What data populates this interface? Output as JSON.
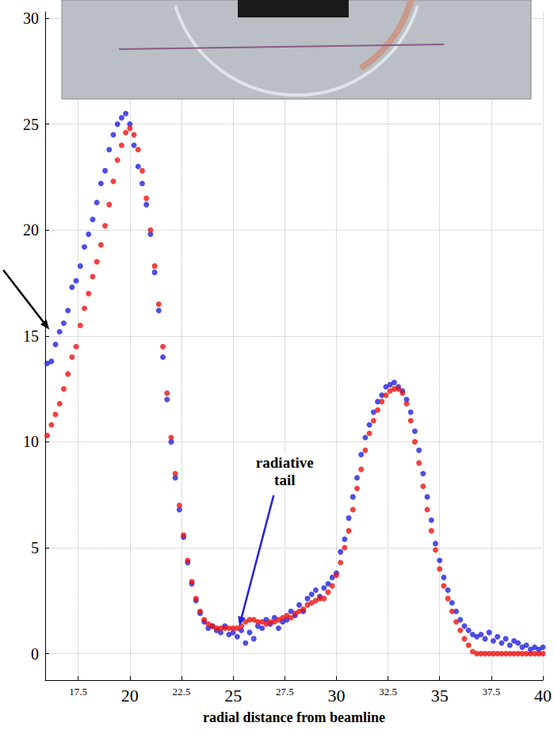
{
  "chart_data": {
    "type": "scatter",
    "xlabel": "radial distance from beamline",
    "xlim": [
      15.9,
      40
    ],
    "xticks": [
      17.5,
      20,
      22.5,
      25,
      27.5,
      30,
      32.5,
      35,
      37.5,
      40
    ],
    "ylim": [
      -1.25,
      30.3
    ],
    "yticks": [
      0,
      5,
      10,
      15,
      20,
      25,
      30
    ],
    "grid": true,
    "marker": "circle",
    "x": [
      16,
      16.2,
      16.4,
      16.6,
      16.8,
      17,
      17.2,
      17.4,
      17.6,
      17.8,
      18,
      18.2,
      18.4,
      18.6,
      18.8,
      19,
      19.2,
      19.4,
      19.6,
      19.8,
      20,
      20.2,
      20.4,
      20.6,
      20.8,
      21,
      21.2,
      21.4,
      21.6,
      21.8,
      22,
      22.2,
      22.4,
      22.6,
      22.8,
      23,
      23.2,
      23.4,
      23.6,
      23.8,
      24,
      24.2,
      24.4,
      24.6,
      24.8,
      25,
      25.2,
      25.4,
      25.6,
      25.8,
      26,
      26.2,
      26.4,
      26.6,
      26.8,
      27,
      27.2,
      27.4,
      27.6,
      27.8,
      28,
      28.2,
      28.4,
      28.6,
      28.8,
      29,
      29.2,
      29.4,
      29.6,
      29.8,
      30,
      30.2,
      30.4,
      30.6,
      30.8,
      31,
      31.2,
      31.4,
      31.6,
      31.8,
      32,
      32.2,
      32.4,
      32.6,
      32.8,
      33,
      33.2,
      33.4,
      33.6,
      33.8,
      34,
      34.2,
      34.4,
      34.6,
      34.8,
      35,
      35.2,
      35.4,
      35.6,
      35.8,
      36,
      36.2,
      36.4,
      36.6,
      36.8,
      37,
      37.2,
      37.4,
      37.6,
      37.8,
      38,
      38.2,
      38.4,
      38.6,
      38.8,
      39,
      39.2,
      39.4,
      39.6,
      39.8,
      40
    ],
    "series": [
      {
        "color": "#2222dd",
        "values": [
          13.7,
          13.8,
          14.6,
          15.2,
          15.6,
          16.2,
          17.3,
          17.6,
          18.3,
          19.2,
          19.8,
          20.5,
          21.3,
          22.2,
          22.8,
          23.8,
          24.5,
          25.0,
          25.3,
          25.5,
          25.0,
          24.0,
          23.0,
          22.2,
          21.2,
          19.8,
          18.0,
          16.2,
          14.0,
          12.0,
          10.0,
          8.3,
          6.8,
          5.5,
          4.3,
          3.3,
          2.5,
          1.9,
          1.5,
          1.2,
          1.3,
          1.1,
          1.0,
          1.3,
          0.9,
          1.0,
          0.8,
          1.1,
          0.5,
          1.0,
          0.7,
          1.3,
          1.2,
          1.6,
          1.4,
          1.7,
          1.2,
          1.5,
          1.6,
          2.0,
          1.8,
          2.3,
          2.0,
          2.6,
          2.8,
          3.0,
          2.7,
          3.1,
          3.3,
          3.6,
          3.8,
          4.8,
          5.4,
          6.4,
          7.4,
          8.3,
          9.4,
          10.2,
          10.8,
          11.4,
          11.9,
          12.2,
          12.6,
          12.7,
          12.8,
          12.6,
          12.4,
          12.0,
          11.4,
          10.5,
          9.6,
          8.5,
          7.4,
          6.3,
          5.2,
          4.4,
          3.6,
          3.0,
          2.4,
          2.0,
          1.6,
          1.3,
          1.1,
          0.9,
          0.8,
          0.9,
          0.7,
          1.0,
          0.6,
          0.8,
          0.5,
          0.7,
          0.4,
          0.6,
          0.5,
          0.3,
          0.4,
          0.2,
          0.3,
          0.2,
          0.3
        ]
      },
      {
        "color": "#ee1111",
        "values": [
          10.3,
          10.8,
          11.3,
          11.8,
          12.5,
          13.2,
          14.0,
          14.5,
          15.5,
          16.3,
          17.0,
          17.8,
          18.5,
          19.3,
          20.2,
          21.2,
          22.3,
          23.3,
          24.0,
          24.6,
          24.8,
          24.5,
          23.8,
          22.8,
          21.5,
          20.0,
          18.3,
          16.5,
          14.5,
          12.3,
          10.2,
          8.5,
          7.0,
          5.6,
          4.4,
          3.4,
          2.6,
          2.0,
          1.6,
          1.4,
          1.3,
          1.2,
          1.2,
          1.2,
          1.2,
          1.2,
          1.2,
          1.3,
          1.5,
          1.6,
          1.6,
          1.5,
          1.5,
          1.4,
          1.5,
          1.5,
          1.6,
          1.7,
          1.8,
          1.7,
          1.9,
          2.0,
          2.1,
          2.3,
          2.4,
          2.5,
          2.6,
          2.6,
          2.9,
          3.2,
          3.7,
          4.3,
          5.0,
          5.8,
          6.8,
          7.8,
          8.7,
          9.6,
          10.4,
          11.0,
          11.5,
          11.9,
          12.2,
          12.4,
          12.5,
          12.5,
          12.3,
          11.8,
          11.0,
          10.0,
          9.0,
          7.9,
          6.8,
          5.8,
          4.9,
          4.0,
          3.2,
          2.6,
          2.0,
          1.5,
          1.1,
          0.7,
          0.4,
          0.1,
          0,
          0,
          0,
          0,
          0,
          0,
          0,
          0,
          0,
          0,
          0,
          0,
          0,
          0,
          0,
          0,
          0
        ]
      }
    ],
    "annotations": [
      {
        "text": "radiative tail",
        "x": 27.5,
        "y": 8.6,
        "arrow_to": [
          25.3,
          1.3
        ],
        "color": "#2222dd"
      },
      {
        "arrow_to": [
          16.1,
          15.3
        ],
        "color": "#000000"
      }
    ]
  }
}
